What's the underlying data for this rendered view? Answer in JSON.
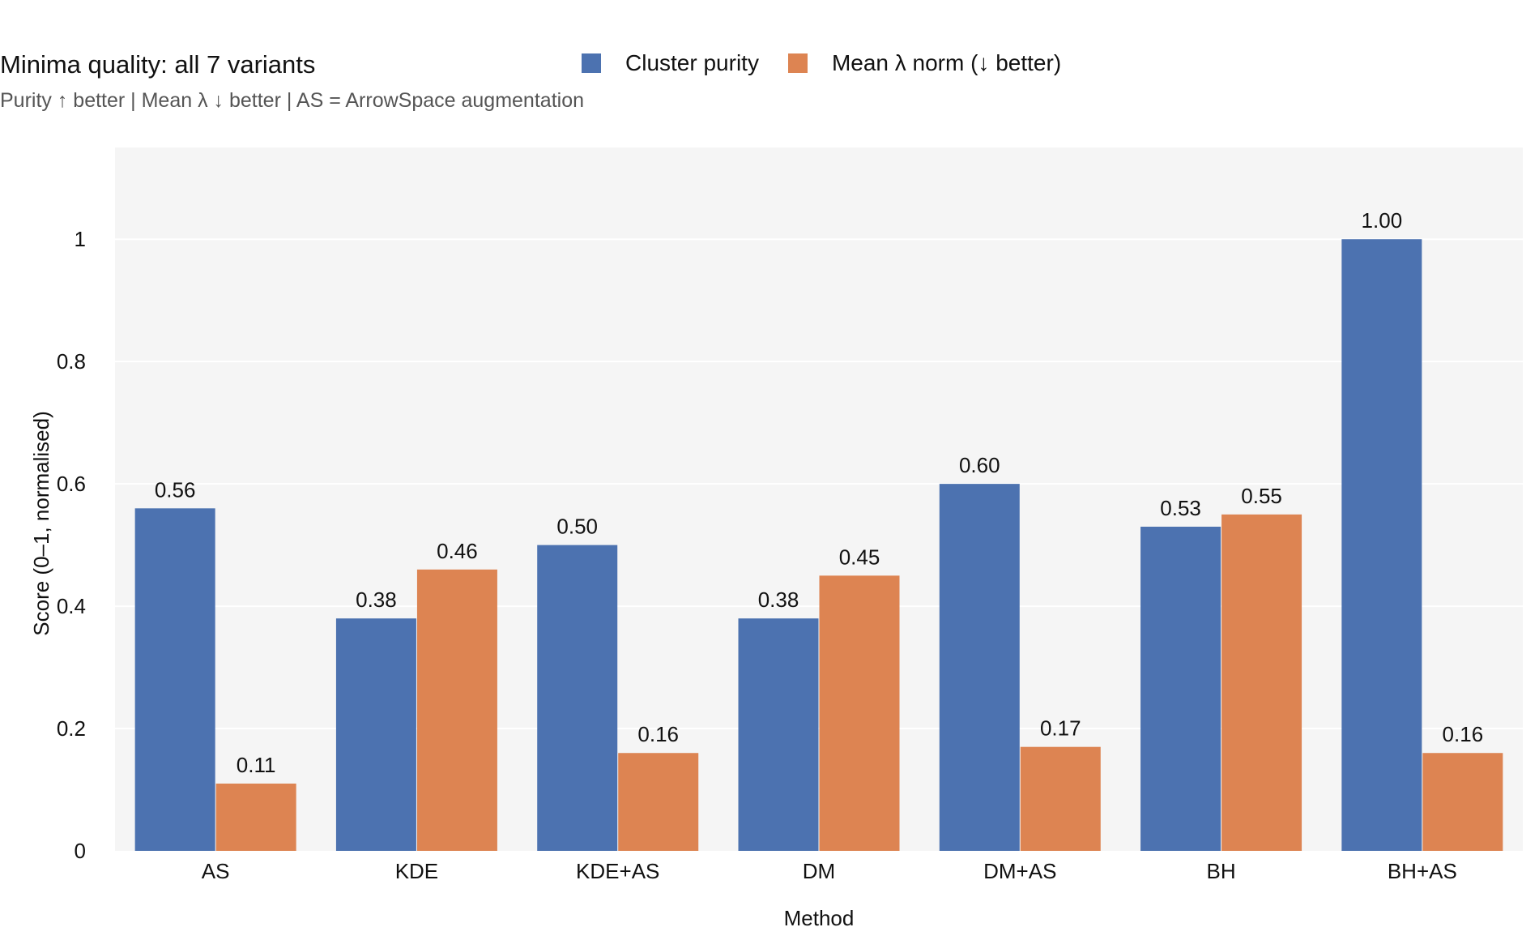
{
  "chart_data": {
    "type": "bar",
    "title": "Minima quality: all 7 variants",
    "subtitle": "Purity ↑ better  |  Mean λ ↓ better  |  AS = ArrowSpace augmentation",
    "xlabel": "Method",
    "ylabel": "Score (0–1, normalised)",
    "categories": [
      "AS",
      "KDE",
      "KDE+AS",
      "DM",
      "DM+AS",
      "BH",
      "BH+AS"
    ],
    "series": [
      {
        "name": "Cluster purity",
        "color": "#4c72b0",
        "values": [
          0.56,
          0.38,
          0.5,
          0.38,
          0.6,
          0.53,
          1.0
        ],
        "labels": [
          "0.56",
          "0.38",
          "0.50",
          "0.38",
          "0.60",
          "0.53",
          "1.00"
        ]
      },
      {
        "name": "Mean λ norm (↓ better)",
        "color": "#dd8452",
        "values": [
          0.11,
          0.46,
          0.16,
          0.45,
          0.17,
          0.55,
          0.16
        ],
        "labels": [
          "0.11",
          "0.46",
          "0.16",
          "0.45",
          "0.17",
          "0.55",
          "0.16"
        ]
      }
    ],
    "ylim": [
      0,
      1.15
    ],
    "yticks": [
      0,
      0.2,
      0.4,
      0.6,
      0.8,
      1
    ],
    "ytick_labels": [
      "0",
      "0.2",
      "0.4",
      "0.6",
      "0.8",
      "1"
    ],
    "grid": true,
    "legend": "top-center",
    "plot_background": "#f5f5f5"
  }
}
